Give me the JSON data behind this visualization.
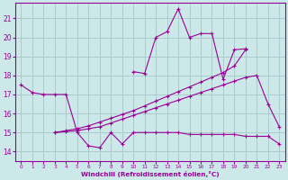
{
  "bg_color": "#cce8e8",
  "grid_color": "#aacccc",
  "line_color": "#990099",
  "xlabel": "Windchill (Refroidissement éolien,°C)",
  "xlabel_color": "#990099",
  "tick_color": "#990099",
  "xlim": [
    -0.5,
    23.5
  ],
  "ylim": [
    13.5,
    21.8
  ],
  "yticks": [
    14,
    15,
    16,
    17,
    18,
    19,
    20,
    21
  ],
  "xticks": [
    0,
    1,
    2,
    3,
    4,
    5,
    6,
    7,
    8,
    9,
    10,
    11,
    12,
    13,
    14,
    15,
    16,
    17,
    18,
    19,
    20,
    21,
    22,
    23
  ],
  "line_upper_x": [
    10,
    11,
    12,
    13,
    14,
    15,
    16,
    17,
    18,
    19,
    20
  ],
  "line_upper_y": [
    18.2,
    18.1,
    20.0,
    20.3,
    21.5,
    20.0,
    20.2,
    20.2,
    17.8,
    19.35,
    19.4
  ],
  "line_grad1_x": [
    3,
    4,
    5,
    6,
    7,
    8,
    9,
    10,
    11,
    12,
    13,
    14,
    15,
    16,
    17,
    18,
    19,
    20
  ],
  "line_grad1_y": [
    15.0,
    15.1,
    15.2,
    15.35,
    15.55,
    15.75,
    15.95,
    16.15,
    16.4,
    16.65,
    16.9,
    17.15,
    17.4,
    17.65,
    17.9,
    18.15,
    18.5,
    19.35
  ],
  "line_grad2_x": [
    3,
    4,
    5,
    6,
    7,
    8,
    9,
    10,
    11,
    12,
    13,
    14,
    15,
    16,
    17,
    18,
    19,
    20,
    21,
    22,
    23
  ],
  "line_grad2_y": [
    15.0,
    15.05,
    15.1,
    15.2,
    15.3,
    15.5,
    15.7,
    15.9,
    16.1,
    16.3,
    16.5,
    16.7,
    16.9,
    17.1,
    17.3,
    17.5,
    17.7,
    17.9,
    18.0,
    16.5,
    15.3
  ],
  "line_flat_x": [
    0,
    1,
    2,
    3,
    4,
    5,
    6,
    7,
    8,
    9,
    10,
    11,
    12,
    13,
    14,
    15,
    16,
    17,
    18,
    19,
    20,
    21,
    22,
    23
  ],
  "line_flat_y": [
    17.5,
    17.1,
    17.0,
    17.0,
    17.0,
    15.0,
    14.3,
    14.2,
    15.0,
    14.4,
    15.0,
    15.0,
    15.0,
    15.0,
    15.0,
    14.9,
    14.9,
    14.9,
    14.9,
    14.9,
    14.8,
    14.8,
    14.8,
    14.4
  ]
}
